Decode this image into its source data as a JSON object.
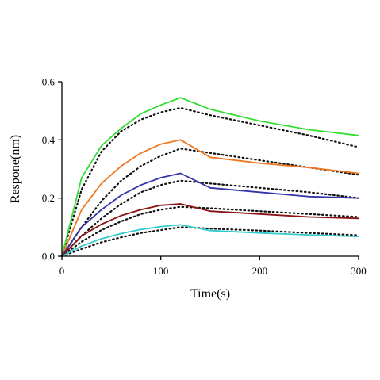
{
  "chart_data": {
    "type": "line",
    "xlabel": "Time(s)",
    "ylabel": "Respone(nm)",
    "xlim": [
      0,
      300
    ],
    "ylim": [
      0,
      0.6
    ],
    "xticks": [
      0,
      100,
      200,
      300
    ],
    "yticks": [
      0.0,
      0.2,
      0.4,
      0.6
    ],
    "ytick_labels": [
      "0.0",
      "0.2",
      "0.4",
      "0.6"
    ],
    "grid": false,
    "association_end": 120,
    "series": [
      {
        "color": "#33dd33",
        "measured": {
          "x": [
            0,
            20,
            40,
            60,
            80,
            100,
            120,
            150,
            200,
            250,
            300
          ],
          "y": [
            0,
            0.27,
            0.38,
            0.44,
            0.49,
            0.52,
            0.545,
            0.505,
            0.465,
            0.435,
            0.415
          ]
        },
        "fit": {
          "x": [
            0,
            20,
            40,
            60,
            80,
            100,
            120,
            150,
            200,
            250,
            300
          ],
          "y": [
            0,
            0.23,
            0.36,
            0.43,
            0.47,
            0.495,
            0.51,
            0.485,
            0.45,
            0.415,
            0.375
          ]
        }
      },
      {
        "color": "#ee7722",
        "measured": {
          "x": [
            0,
            20,
            40,
            60,
            80,
            100,
            120,
            150,
            200,
            250,
            300
          ],
          "y": [
            0,
            0.16,
            0.25,
            0.31,
            0.355,
            0.385,
            0.4,
            0.34,
            0.32,
            0.305,
            0.285
          ]
        },
        "fit": {
          "x": [
            0,
            20,
            40,
            60,
            80,
            100,
            120,
            150,
            200,
            250,
            300
          ],
          "y": [
            0,
            0.1,
            0.19,
            0.26,
            0.31,
            0.345,
            0.37,
            0.355,
            0.33,
            0.305,
            0.28
          ]
        }
      },
      {
        "color": "#3333aa",
        "measured": {
          "x": [
            0,
            20,
            40,
            60,
            80,
            100,
            120,
            150,
            200,
            250,
            300
          ],
          "y": [
            0,
            0.1,
            0.16,
            0.21,
            0.245,
            0.27,
            0.285,
            0.235,
            0.22,
            0.205,
            0.2
          ]
        },
        "fit": {
          "x": [
            0,
            20,
            40,
            60,
            80,
            100,
            120,
            150,
            200,
            250,
            300
          ],
          "y": [
            0,
            0.07,
            0.13,
            0.18,
            0.22,
            0.245,
            0.26,
            0.25,
            0.235,
            0.22,
            0.2
          ]
        }
      },
      {
        "color": "#881111",
        "measured": {
          "x": [
            0,
            20,
            40,
            60,
            80,
            100,
            120,
            150,
            200,
            250,
            300
          ],
          "y": [
            0,
            0.07,
            0.11,
            0.14,
            0.16,
            0.175,
            0.18,
            0.155,
            0.145,
            0.135,
            0.13
          ]
        },
        "fit": {
          "x": [
            0,
            20,
            40,
            60,
            80,
            100,
            120,
            150,
            200,
            250,
            300
          ],
          "y": [
            0,
            0.05,
            0.09,
            0.12,
            0.145,
            0.16,
            0.17,
            0.165,
            0.155,
            0.145,
            0.135
          ]
        }
      },
      {
        "color": "#33cccc",
        "measured": {
          "x": [
            0,
            20,
            40,
            60,
            80,
            100,
            120,
            150,
            200,
            250,
            300
          ],
          "y": [
            0,
            0.035,
            0.06,
            0.078,
            0.092,
            0.102,
            0.108,
            0.088,
            0.08,
            0.073,
            0.068
          ]
        },
        "fit": {
          "x": [
            0,
            20,
            40,
            60,
            80,
            100,
            120,
            150,
            200,
            250,
            300
          ],
          "y": [
            0,
            0.025,
            0.048,
            0.065,
            0.08,
            0.09,
            0.1,
            0.095,
            0.088,
            0.08,
            0.072
          ]
        }
      }
    ]
  }
}
